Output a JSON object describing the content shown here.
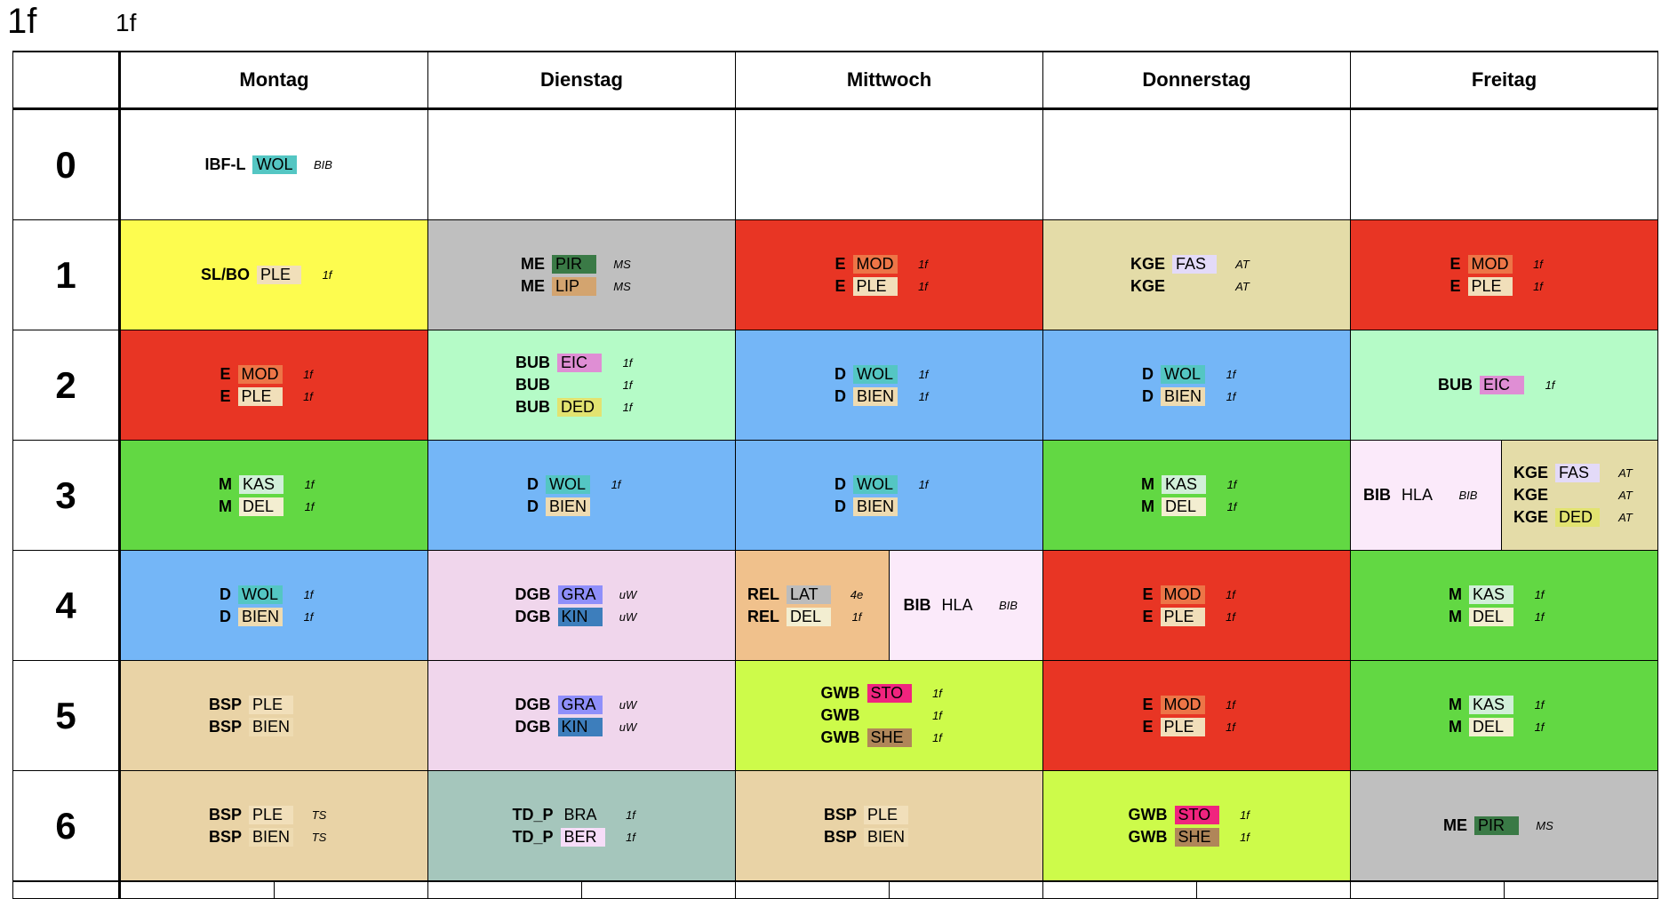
{
  "title": "1f",
  "subtitle": "1f",
  "days": [
    "Montag",
    "Dienstag",
    "Mittwoch",
    "Donnerstag",
    "Freitag"
  ],
  "periods": [
    "0",
    "1",
    "2",
    "3",
    "4",
    "5",
    "6"
  ],
  "colors": {
    "SL/BO": "#fdfc4f",
    "ME": "#bfbfbf",
    "E": "#e83524",
    "KGE": "#e4dca8",
    "BUB": "#b5fbc7",
    "D": "#74b6f7",
    "M": "#62d843",
    "DGB": "#f0d6ec",
    "REL": "#f0c18c",
    "BIB": "#fbeafa",
    "BSP": "#e9d3a6",
    "GWB": "#cdfb4a",
    "TD_P": "#a5c6bc",
    "empty": "#ffffff"
  },
  "teachers": {
    "WOL": "#54c6c3",
    "PLE": "#f1dfba",
    "PIR": "#3a7a46",
    "LIP": "#d3a46f",
    "MOD": "#ed7547",
    "FAS": "#e3daf8",
    "EIC": "#df8ed4",
    "DED": "#e2e371",
    "BIEN": "#eedbb1",
    "KAS": "#d1efd9",
    "DEL": "#f3eed1",
    "HLA": "none",
    "GRA": "#8f8ffa",
    "KIN": "#3d7ebc",
    "LAT": "#bcbcbc",
    "STO": "#f0247e",
    "SHE": "#b08659",
    "BRA": "none",
    "BER": "#f6ddf8"
  },
  "schedule": [
    [
      {
        "c": "empty",
        "l": [
          {
            "s": "IBF-L",
            "t": "WOL",
            "r": "BIB"
          }
        ]
      },
      {
        "c": "empty",
        "l": []
      },
      {
        "c": "empty",
        "l": []
      },
      {
        "c": "empty",
        "l": []
      },
      {
        "c": "empty",
        "l": []
      }
    ],
    [
      {
        "c": "SL/BO",
        "l": [
          {
            "s": "SL/BO",
            "t": "PLE",
            "r": "1f"
          }
        ]
      },
      {
        "c": "ME",
        "l": [
          {
            "s": "ME",
            "t": "PIR",
            "r": "MS"
          },
          {
            "s": "ME",
            "t": "LIP",
            "r": "MS"
          }
        ]
      },
      {
        "c": "E",
        "l": [
          {
            "s": "E",
            "t": "MOD",
            "r": "1f"
          },
          {
            "s": "E",
            "t": "PLE",
            "r": "1f"
          }
        ]
      },
      {
        "c": "KGE",
        "l": [
          {
            "s": "KGE",
            "t": "FAS",
            "r": "AT"
          },
          {
            "s": "KGE",
            "t": "",
            "r": "AT"
          }
        ]
      },
      {
        "c": "E",
        "l": [
          {
            "s": "E",
            "t": "MOD",
            "r": "1f"
          },
          {
            "s": "E",
            "t": "PLE",
            "r": "1f"
          }
        ]
      }
    ],
    [
      {
        "c": "E",
        "l": [
          {
            "s": "E",
            "t": "MOD",
            "r": "1f"
          },
          {
            "s": "E",
            "t": "PLE",
            "r": "1f"
          }
        ]
      },
      {
        "c": "BUB",
        "l": [
          {
            "s": "BUB",
            "t": "EIC",
            "r": "1f"
          },
          {
            "s": "BUB",
            "t": "",
            "r": "1f"
          },
          {
            "s": "BUB",
            "t": "DED",
            "r": "1f"
          }
        ]
      },
      {
        "c": "D",
        "l": [
          {
            "s": "D",
            "t": "WOL",
            "r": "1f"
          },
          {
            "s": "D",
            "t": "BIEN",
            "r": "1f"
          }
        ]
      },
      {
        "c": "D",
        "l": [
          {
            "s": "D",
            "t": "WOL",
            "r": "1f"
          },
          {
            "s": "D",
            "t": "BIEN",
            "r": "1f"
          }
        ]
      },
      {
        "c": "BUB",
        "l": [
          {
            "s": "BUB",
            "t": "EIC",
            "r": "1f"
          }
        ]
      }
    ],
    [
      {
        "c": "M",
        "l": [
          {
            "s": "M",
            "t": "KAS",
            "r": "1f"
          },
          {
            "s": "M",
            "t": "DEL",
            "r": "1f"
          }
        ]
      },
      {
        "c": "D",
        "l": [
          {
            "s": "D",
            "t": "WOL",
            "r": "1f"
          },
          {
            "s": "D",
            "t": "BIEN",
            "r": ""
          }
        ]
      },
      {
        "c": "D",
        "l": [
          {
            "s": "D",
            "t": "WOL",
            "r": "1f"
          },
          {
            "s": "D",
            "t": "BIEN",
            "r": ""
          }
        ]
      },
      {
        "c": "M",
        "l": [
          {
            "s": "M",
            "t": "KAS",
            "r": "1f"
          },
          {
            "s": "M",
            "t": "DEL",
            "r": "1f"
          }
        ]
      },
      {
        "split": [
          {
            "c": "BIB",
            "l": [
              {
                "s": "BIB",
                "t": "HLA",
                "r": "BIB"
              }
            ]
          },
          {
            "c": "KGE",
            "l": [
              {
                "s": "KGE",
                "t": "FAS",
                "r": "AT"
              },
              {
                "s": "KGE",
                "t": "",
                "r": "AT"
              },
              {
                "s": "KGE",
                "t": "DED",
                "r": "AT"
              }
            ]
          }
        ]
      }
    ],
    [
      {
        "c": "D",
        "l": [
          {
            "s": "D",
            "t": "WOL",
            "r": "1f"
          },
          {
            "s": "D",
            "t": "BIEN",
            "r": "1f"
          }
        ]
      },
      {
        "c": "DGB",
        "l": [
          {
            "s": "DGB",
            "t": "GRA",
            "r": "uW"
          },
          {
            "s": "DGB",
            "t": "KIN",
            "r": "uW"
          }
        ]
      },
      {
        "split": [
          {
            "c": "REL",
            "l": [
              {
                "s": "REL",
                "t": "LAT",
                "r": "4e"
              },
              {
                "s": "REL",
                "t": "DEL",
                "r": "1f"
              }
            ]
          },
          {
            "c": "BIB",
            "l": [
              {
                "s": "BIB",
                "t": "HLA",
                "r": "BIB"
              }
            ]
          }
        ]
      },
      {
        "c": "E",
        "l": [
          {
            "s": "E",
            "t": "MOD",
            "r": "1f"
          },
          {
            "s": "E",
            "t": "PLE",
            "r": "1f"
          }
        ]
      },
      {
        "c": "M",
        "l": [
          {
            "s": "M",
            "t": "KAS",
            "r": "1f"
          },
          {
            "s": "M",
            "t": "DEL",
            "r": "1f"
          }
        ]
      }
    ],
    [
      {
        "c": "BSP",
        "l": [
          {
            "s": "BSP",
            "t": "PLE",
            "r": ""
          },
          {
            "s": "BSP",
            "t": "BIEN",
            "r": ""
          }
        ]
      },
      {
        "c": "DGB",
        "l": [
          {
            "s": "DGB",
            "t": "GRA",
            "r": "uW"
          },
          {
            "s": "DGB",
            "t": "KIN",
            "r": "uW"
          }
        ]
      },
      {
        "c": "GWB",
        "l": [
          {
            "s": "GWB",
            "t": "STO",
            "r": "1f"
          },
          {
            "s": "GWB",
            "t": "",
            "r": "1f"
          },
          {
            "s": "GWB",
            "t": "SHE",
            "r": "1f"
          }
        ]
      },
      {
        "c": "E",
        "l": [
          {
            "s": "E",
            "t": "MOD",
            "r": "1f"
          },
          {
            "s": "E",
            "t": "PLE",
            "r": "1f"
          }
        ]
      },
      {
        "c": "M",
        "l": [
          {
            "s": "M",
            "t": "KAS",
            "r": "1f"
          },
          {
            "s": "M",
            "t": "DEL",
            "r": "1f"
          }
        ]
      }
    ],
    [
      {
        "c": "BSP",
        "l": [
          {
            "s": "BSP",
            "t": "PLE",
            "r": "TS"
          },
          {
            "s": "BSP",
            "t": "BIEN",
            "r": "TS"
          }
        ]
      },
      {
        "c": "TD_P",
        "l": [
          {
            "s": "TD_P",
            "t": "BRA",
            "r": "1f"
          },
          {
            "s": "TD_P",
            "t": "BER",
            "r": "1f"
          }
        ]
      },
      {
        "c": "BSP",
        "l": [
          {
            "s": "BSP",
            "t": "PLE",
            "r": ""
          },
          {
            "s": "BSP",
            "t": "BIEN",
            "r": ""
          }
        ]
      },
      {
        "c": "GWB",
        "l": [
          {
            "s": "GWB",
            "t": "STO",
            "r": "1f"
          },
          {
            "s": "GWB",
            "t": "SHE",
            "r": "1f"
          }
        ]
      },
      {
        "c": "ME",
        "l": [
          {
            "s": "ME",
            "t": "PIR",
            "r": "MS"
          }
        ]
      }
    ]
  ]
}
